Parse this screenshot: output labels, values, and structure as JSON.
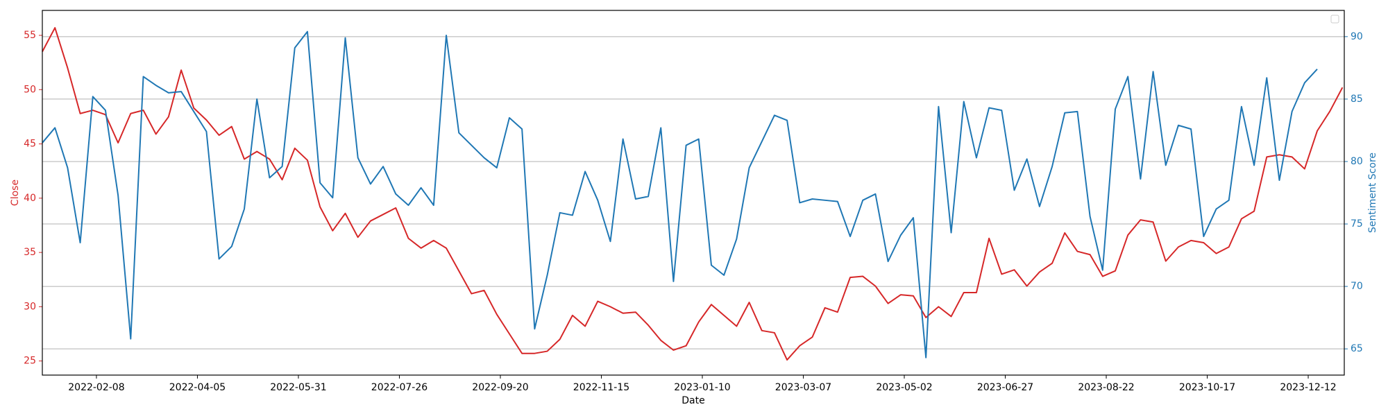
{
  "chart_data": {
    "type": "line",
    "x_label": "Date",
    "y_label": "Close",
    "y2_label": "Sentiment Score",
    "x": [
      "2022-01-09",
      "2022-01-16",
      "2022-01-23",
      "2022-01-30",
      "2022-02-06",
      "2022-02-13",
      "2022-02-20",
      "2022-02-27",
      "2022-03-06",
      "2022-03-13",
      "2022-03-20",
      "2022-03-27",
      "2022-04-03",
      "2022-04-10",
      "2022-04-17",
      "2022-04-24",
      "2022-05-01",
      "2022-05-08",
      "2022-05-15",
      "2022-05-22",
      "2022-05-29",
      "2022-06-05",
      "2022-06-12",
      "2022-06-19",
      "2022-06-26",
      "2022-07-03",
      "2022-07-10",
      "2022-07-17",
      "2022-07-24",
      "2022-07-31",
      "2022-08-07",
      "2022-08-14",
      "2022-08-21",
      "2022-08-28",
      "2022-09-04",
      "2022-09-11",
      "2022-09-18",
      "2022-09-25",
      "2022-10-02",
      "2022-10-09",
      "2022-10-16",
      "2022-10-23",
      "2022-10-30",
      "2022-11-06",
      "2022-11-13",
      "2022-11-20",
      "2022-11-27",
      "2022-12-04",
      "2022-12-11",
      "2022-12-18",
      "2022-12-25",
      "2023-01-01",
      "2023-01-08",
      "2023-01-15",
      "2023-01-22",
      "2023-01-29",
      "2023-02-05",
      "2023-02-12",
      "2023-02-19",
      "2023-02-26",
      "2023-03-05",
      "2023-03-12",
      "2023-03-19",
      "2023-03-26",
      "2023-04-02",
      "2023-04-09",
      "2023-04-16",
      "2023-04-23",
      "2023-04-30",
      "2023-05-07",
      "2023-05-14",
      "2023-05-21",
      "2023-05-28",
      "2023-06-04",
      "2023-06-11",
      "2023-06-18",
      "2023-06-25",
      "2023-07-02",
      "2023-07-09",
      "2023-07-16",
      "2023-07-23",
      "2023-07-30",
      "2023-08-06",
      "2023-08-13",
      "2023-08-20",
      "2023-08-27",
      "2023-09-03",
      "2023-09-10",
      "2023-09-17",
      "2023-09-24",
      "2023-10-01",
      "2023-10-08",
      "2023-10-15",
      "2023-10-22",
      "2023-10-29",
      "2023-11-05",
      "2023-11-12",
      "2023-11-19",
      "2023-11-26",
      "2023-12-03",
      "2023-12-10",
      "2023-12-17",
      "2023-12-24",
      "2023-12-31"
    ],
    "series": [
      {
        "name": "Close",
        "color": "#d62728",
        "axis": "y",
        "values": [
          53.5,
          55.7,
          52,
          47.8,
          48.1,
          47.7,
          45.1,
          47.8,
          48.1,
          45.9,
          47.5,
          51.8,
          48.3,
          47.2,
          45.8,
          46.6,
          43.6,
          44.3,
          43.6,
          41.7,
          44.6,
          43.5,
          39.2,
          37,
          38.6,
          36.4,
          37.9,
          38.5,
          39.1,
          36.3,
          35.4,
          36.1,
          35.4,
          33.3,
          31.2,
          31.5,
          29.3,
          27.5,
          25.7,
          25.7,
          25.9,
          27,
          29.2,
          28.2,
          30.5,
          30,
          29.4,
          29.5,
          28.3,
          26.9,
          26,
          26.4,
          28.6,
          30.2,
          29.2,
          28.2,
          30.4,
          27.8,
          27.6,
          25.1,
          26.4,
          27.2,
          29.9,
          29.5,
          32.7,
          32.8,
          31.9,
          30.3,
          31.1,
          31,
          29,
          30,
          29.1,
          31.3,
          31.3,
          36.3,
          33,
          33.4,
          31.9,
          33.2,
          34,
          36.8,
          35.1,
          34.8,
          32.8,
          33.3,
          36.6,
          38,
          37.8,
          34.2,
          35.5,
          36.1,
          35.9,
          34.9,
          35.5,
          38.1,
          38.8,
          43.8,
          44,
          43.8,
          42.7,
          46.2,
          48,
          50.2
        ]
      },
      {
        "name": "Sentiment Score",
        "color": "#1f77b4",
        "axis": "y2",
        "values": [
          81.5,
          82.7,
          79.5,
          73.5,
          85.2,
          84.1,
          77.3,
          65.8,
          86.8,
          86.1,
          85.5,
          85.6,
          84,
          82.4,
          72.2,
          73.2,
          76.2,
          85,
          78.7,
          79.6,
          89.1,
          90.4,
          78.3,
          77.1,
          89.9,
          80.3,
          78.2,
          79.6,
          77.4,
          76.5,
          77.9,
          76.5,
          90.1,
          82.3,
          81.3,
          80.3,
          79.5,
          83.5,
          82.6,
          66.6,
          70.9,
          75.9,
          75.7,
          79.2,
          76.9,
          73.6,
          81.8,
          77,
          77.2,
          82.7,
          70.4,
          81.3,
          81.8,
          71.7,
          70.9,
          73.8,
          79.5,
          81.6,
          83.7,
          83.3,
          76.7,
          77,
          76.9,
          76.8,
          74,
          76.9,
          77.4,
          72,
          74.1,
          75.5,
          64.3,
          84.4,
          74.3,
          84.8,
          80.3,
          84.3,
          84.1,
          77.7,
          80.2,
          76.4,
          79.6,
          83.9,
          84,
          75.6,
          71.3,
          84.2,
          86.8,
          78.6,
          87.2,
          79.7,
          82.9,
          82.6,
          74,
          76.2,
          76.9,
          84.4,
          79.7,
          86.7,
          78.5,
          84,
          86.3,
          87.4,
          null,
          null
        ]
      }
    ],
    "xlim": [
      "2022-01-09",
      "2024-01-01"
    ],
    "xticks": [
      "2022-02-08",
      "2022-04-05",
      "2022-05-31",
      "2022-07-26",
      "2022-09-20",
      "2022-11-15",
      "2023-01-10",
      "2023-03-07",
      "2023-05-02",
      "2023-06-27",
      "2023-08-22",
      "2023-10-17",
      "2023-12-12"
    ],
    "ylim": [
      23.7,
      57.3
    ],
    "yticks": [
      25,
      30,
      35,
      40,
      45,
      50,
      55
    ],
    "y2lim": [
      62.9,
      92.1
    ],
    "y2ticks": [
      65,
      70,
      75,
      80,
      85,
      90
    ],
    "grid": "y2",
    "legend": "upper right"
  }
}
